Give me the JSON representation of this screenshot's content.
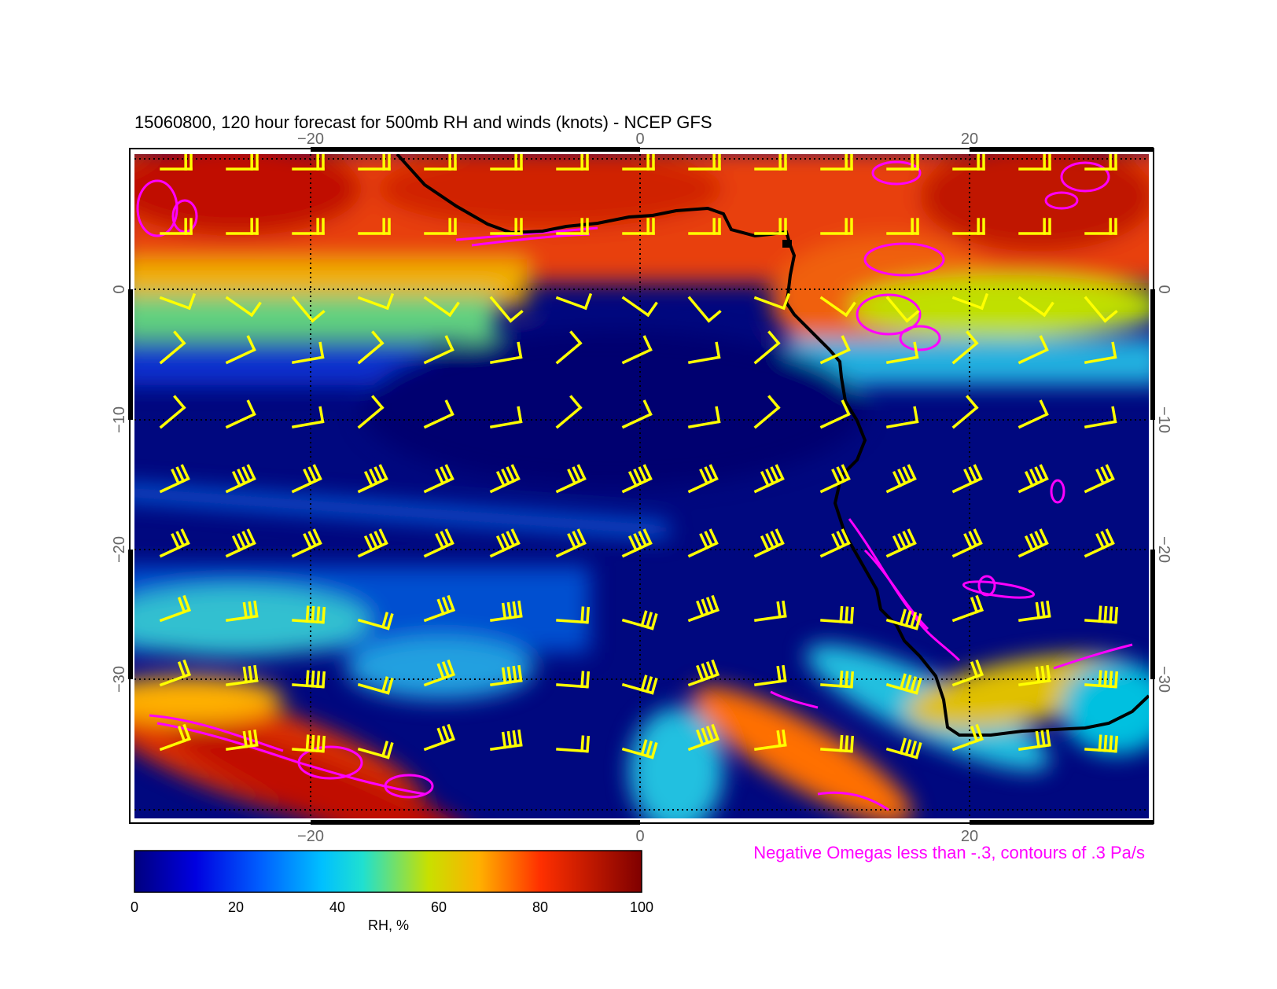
{
  "title": "15060800, 120 hour forecast for 500mb RH and winds (knots) - NCEP GFS",
  "map": {
    "lon_range": [
      -31,
      31
    ],
    "lat_range": [
      -40,
      10
    ],
    "lon_ticks": [
      -20,
      0,
      20
    ],
    "lat_ticks": [
      0,
      -10,
      -20,
      -30
    ],
    "lon_tick_labels": [
      "−20",
      "0",
      "20"
    ],
    "lat_tick_labels": [
      "0",
      "−10",
      "−20",
      "−30"
    ],
    "grid": "dotted",
    "coastline_color": "#000000",
    "omega_contour_color": "#ff00ff",
    "wind_barb_color": "#ffff00"
  },
  "omega_note": "Negative Omegas less than -.3, contours of .3 Pa/s",
  "colorbar": {
    "label": "RH, %",
    "ticks": [
      "0",
      "20",
      "40",
      "60",
      "80",
      "100"
    ],
    "colors": [
      "#00007f",
      "#0000ff",
      "#0080ff",
      "#00e0e0",
      "#c8e000",
      "#ff8000",
      "#e00000",
      "#7f0000"
    ]
  }
}
